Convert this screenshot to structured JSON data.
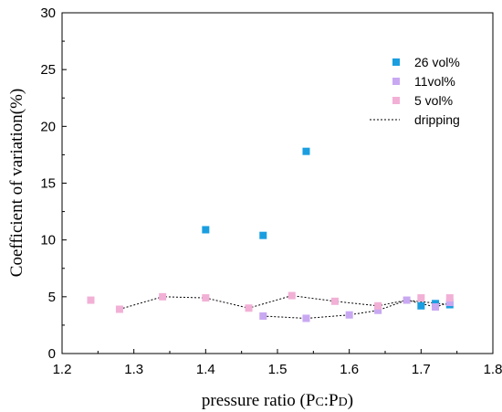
{
  "chart_data": {
    "type": "scatter",
    "title": "",
    "xlabel": "pressure ratio (Pc:Pd)",
    "xlabel_parts": {
      "prefix": "pressure ratio (P",
      "sub1": "C",
      "mid": ":P",
      "sub2": "D",
      "suffix": ")"
    },
    "ylabel": "Coefficient of variation(%)",
    "xlim": [
      1.2,
      1.8
    ],
    "ylim": [
      0,
      30
    ],
    "xticks": [
      "1.2",
      "1.3",
      "1.4",
      "1.5",
      "1.6",
      "1.7",
      "1.8"
    ],
    "yticks": [
      "0",
      "5",
      "10",
      "15",
      "20",
      "25",
      "30"
    ],
    "grid": false,
    "legend_position": "top-right",
    "series": [
      {
        "name": "26 vol%",
        "color": "#1a9ee0",
        "marker": "square",
        "points": [
          {
            "x": 1.4,
            "y": 10.9
          },
          {
            "x": 1.48,
            "y": 10.4
          },
          {
            "x": 1.54,
            "y": 17.8
          },
          {
            "x": 1.7,
            "y": 4.2
          },
          {
            "x": 1.72,
            "y": 4.4
          },
          {
            "x": 1.74,
            "y": 4.3
          }
        ]
      },
      {
        "name": "11vol%",
        "color": "#c9a8f2",
        "marker": "square",
        "points": [
          {
            "x": 1.48,
            "y": 3.3
          },
          {
            "x": 1.54,
            "y": 3.1
          },
          {
            "x": 1.6,
            "y": 3.4
          },
          {
            "x": 1.64,
            "y": 3.8
          },
          {
            "x": 1.68,
            "y": 4.7
          },
          {
            "x": 1.72,
            "y": 4.1
          },
          {
            "x": 1.74,
            "y": 4.5
          }
        ]
      },
      {
        "name": "5 vol%",
        "color": "#f2b0d6",
        "marker": "square",
        "points": [
          {
            "x": 1.24,
            "y": 4.7
          },
          {
            "x": 1.28,
            "y": 3.9
          },
          {
            "x": 1.34,
            "y": 5.0
          },
          {
            "x": 1.4,
            "y": 4.9
          },
          {
            "x": 1.46,
            "y": 4.0
          },
          {
            "x": 1.52,
            "y": 5.1
          },
          {
            "x": 1.58,
            "y": 4.6
          },
          {
            "x": 1.64,
            "y": 4.2
          },
          {
            "x": 1.7,
            "y": 4.9
          },
          {
            "x": 1.74,
            "y": 4.9
          }
        ]
      }
    ],
    "dashed_lines": [
      {
        "name": "dripping",
        "color": "#000000",
        "points": [
          {
            "x": 1.28,
            "y": 3.9
          },
          {
            "x": 1.34,
            "y": 5.0
          },
          {
            "x": 1.4,
            "y": 4.9
          },
          {
            "x": 1.46,
            "y": 4.0
          },
          {
            "x": 1.52,
            "y": 5.1
          },
          {
            "x": 1.58,
            "y": 4.6
          },
          {
            "x": 1.64,
            "y": 4.2
          },
          {
            "x": 1.68,
            "y": 4.7
          },
          {
            "x": 1.74,
            "y": 4.3
          }
        ]
      },
      {
        "name": "dripping",
        "color": "#000000",
        "points": [
          {
            "x": 1.48,
            "y": 3.3
          },
          {
            "x": 1.54,
            "y": 3.1
          },
          {
            "x": 1.6,
            "y": 3.4
          },
          {
            "x": 1.64,
            "y": 3.8
          },
          {
            "x": 1.68,
            "y": 4.7
          },
          {
            "x": 1.72,
            "y": 4.1
          },
          {
            "x": 1.74,
            "y": 4.5
          }
        ]
      }
    ],
    "legend": [
      {
        "label": "26 vol%",
        "kind": "marker",
        "color": "#1a9ee0"
      },
      {
        "label": "11vol%",
        "kind": "marker",
        "color": "#c9a8f2"
      },
      {
        "label": "5 vol%",
        "kind": "marker",
        "color": "#f2b0d6"
      },
      {
        "label": "dripping",
        "kind": "line",
        "color": "#000000"
      }
    ]
  }
}
